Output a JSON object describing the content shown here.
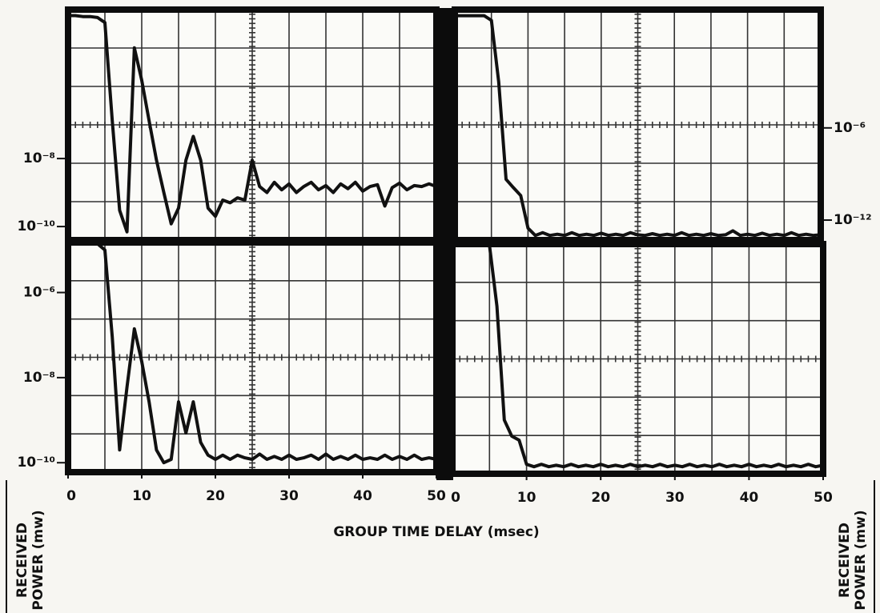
{
  "labels": {
    "x_label": "GROUP TIME DELAY (msec)",
    "y_label_left": [
      "RECEIVED",
      "POWER (mw)"
    ],
    "y_label_right": [
      "RECEIVED",
      "POWER (mw)"
    ]
  },
  "chart_data": [
    {
      "type": "line",
      "log_y": true,
      "grid": true,
      "y_axis_side": "left",
      "xlim": [
        0,
        50
      ],
      "ylim": [
        4e-11,
        0.00024
      ],
      "yticks": [
        {
          "value": 1e-08,
          "label": "10⁻⁸"
        },
        {
          "value": 1e-10,
          "label": "10⁻¹⁰"
        }
      ],
      "x": [
        0,
        1,
        2,
        3,
        4,
        5,
        6,
        7,
        8,
        9,
        10,
        11,
        12,
        13,
        14,
        15,
        16,
        17,
        18,
        19,
        20,
        21,
        22,
        23,
        24,
        25,
        26,
        27,
        28,
        29,
        30,
        31,
        32,
        33,
        34,
        35,
        36,
        37,
        38,
        39,
        40,
        41,
        42,
        43,
        44,
        45,
        46,
        47,
        48,
        49,
        50
      ],
      "series": [
        {
          "name": null,
          "color": "#111111",
          "values": [
            0.00016,
            0.00016,
            0.00015,
            0.00015,
            0.00014,
            0.0001,
            1.3e-07,
            3e-10,
            7e-11,
            1.8e-05,
            2e-06,
            1.3e-07,
            9e-09,
            1e-09,
            1.2e-10,
            3.5e-10,
            9e-09,
            4.5e-08,
            9e-09,
            3.5e-10,
            2e-10,
            6e-10,
            5e-10,
            7e-10,
            6e-10,
            9e-09,
            1.5e-09,
            1e-09,
            2e-09,
            1.2e-09,
            1.8e-09,
            1e-09,
            1.5e-09,
            2e-09,
            1.2e-09,
            1.6e-09,
            1e-09,
            1.8e-09,
            1.3e-09,
            2e-09,
            1.1e-09,
            1.5e-09,
            1.7e-09,
            4e-10,
            1.4e-09,
            1.9e-09,
            1.2e-09,
            1.6e-09,
            1.5e-09,
            1.8e-09,
            1.5e-09
          ]
        }
      ]
    },
    {
      "type": "line",
      "log_y": true,
      "grid": true,
      "y_axis_side": "right",
      "xlim": [
        0,
        50
      ],
      "ylim": [
        5e-14,
        50
      ],
      "yticks": [
        {
          "value": 1e-06,
          "label": "10⁻⁶"
        },
        {
          "value": 1e-12,
          "label": "10⁻¹²"
        }
      ],
      "x": [
        0,
        1,
        2,
        3,
        4,
        5,
        6,
        7,
        8,
        9,
        10,
        11,
        12,
        13,
        14,
        15,
        16,
        17,
        18,
        19,
        20,
        21,
        22,
        23,
        24,
        25,
        26,
        27,
        28,
        29,
        30,
        31,
        32,
        33,
        34,
        35,
        36,
        37,
        38,
        39,
        40,
        41,
        42,
        43,
        44,
        45,
        46,
        47,
        48,
        49,
        50
      ],
      "series": [
        {
          "name": null,
          "color": "#111111",
          "values": [
            20,
            20,
            20,
            20,
            20,
            10,
            0.001,
            4.5e-10,
            1.3e-10,
            4e-11,
            3e-13,
            1e-13,
            1.5e-13,
            1e-13,
            1.2e-13,
            1e-13,
            1.5e-13,
            1e-13,
            1.2e-13,
            1e-13,
            1.4e-13,
            1e-13,
            1.2e-13,
            1e-13,
            1.5e-13,
            1.1e-13,
            1e-13,
            1.3e-13,
            1e-13,
            1.2e-13,
            1e-13,
            1.5e-13,
            1e-13,
            1.2e-13,
            1e-13,
            1.3e-13,
            1e-13,
            1.1e-13,
            2e-13,
            1e-13,
            1.2e-13,
            1e-13,
            1.4e-13,
            1e-13,
            1.2e-13,
            1e-13,
            1.5e-13,
            1e-13,
            1.2e-13,
            1e-13,
            1.1e-13
          ]
        }
      ]
    },
    {
      "type": "line",
      "log_y": true,
      "grid": true,
      "y_axis_side": "left",
      "xlim": [
        0,
        50
      ],
      "ylim": [
        6e-11,
        1.5e-05
      ],
      "xticks": [
        0,
        10,
        20,
        30,
        40,
        50
      ],
      "yticks": [
        {
          "value": 1e-06,
          "label": "10⁻⁶"
        },
        {
          "value": 1e-08,
          "label": "10⁻⁸"
        },
        {
          "value": 1e-10,
          "label": "10⁻¹⁰"
        }
      ],
      "x": [
        0,
        1,
        2,
        3,
        4,
        5,
        6,
        7,
        8,
        9,
        10,
        11,
        12,
        13,
        14,
        15,
        16,
        17,
        18,
        19,
        20,
        21,
        22,
        23,
        24,
        25,
        26,
        27,
        28,
        29,
        30,
        31,
        32,
        33,
        34,
        35,
        36,
        37,
        38,
        39,
        40,
        41,
        42,
        43,
        44,
        45,
        46,
        47,
        48,
        49,
        50
      ],
      "series": [
        {
          "name": null,
          "color": "#111111",
          "values": [
            1.4e-05,
            1.4e-05,
            1.4e-05,
            1.4e-05,
            1.4e-05,
            1e-05,
            9e-08,
            2e-10,
            6e-09,
            1.4e-07,
            2.4e-08,
            2.7e-09,
            2e-10,
            1e-10,
            1.2e-10,
            2.7e-09,
            5e-10,
            2.7e-09,
            3e-10,
            1.5e-10,
            1.2e-10,
            1.5e-10,
            1.2e-10,
            1.5e-10,
            1.3e-10,
            1.2e-10,
            1.6e-10,
            1.2e-10,
            1.4e-10,
            1.2e-10,
            1.5e-10,
            1.2e-10,
            1.3e-10,
            1.5e-10,
            1.2e-10,
            1.6e-10,
            1.2e-10,
            1.4e-10,
            1.2e-10,
            1.5e-10,
            1.2e-10,
            1.3e-10,
            1.2e-10,
            1.5e-10,
            1.2e-10,
            1.4e-10,
            1.2e-10,
            1.5e-10,
            1.2e-10,
            1.3e-10,
            1.2e-10
          ]
        }
      ]
    },
    {
      "type": "line",
      "log_y": true,
      "grid": true,
      "xlim": [
        0,
        50
      ],
      "ylim": [
        6e-11,
        1.5e-05
      ],
      "xticks": [
        0,
        10,
        20,
        30,
        40,
        50
      ],
      "x": [
        0,
        1,
        2,
        3,
        4,
        5,
        6,
        7,
        8,
        9,
        10,
        11,
        12,
        13,
        14,
        15,
        16,
        17,
        18,
        19,
        20,
        21,
        22,
        23,
        24,
        25,
        26,
        27,
        28,
        29,
        30,
        31,
        32,
        33,
        34,
        35,
        36,
        37,
        38,
        39,
        40,
        41,
        42,
        43,
        44,
        45,
        46,
        47,
        48,
        49,
        50
      ],
      "series": [
        {
          "name": null,
          "color": "#111111",
          "values": [
            1.4e-05,
            1.4e-05,
            1.4e-05,
            1.4e-05,
            1.4e-05,
            1.4e-05,
            5.2e-07,
            1.1e-09,
            4.6e-10,
            3.7e-10,
            1e-10,
            8.8e-11,
            1e-10,
            8.8e-11,
            9.5e-11,
            8.8e-11,
            1e-10,
            8.8e-11,
            9.5e-11,
            8.8e-11,
            1e-10,
            8.8e-11,
            9.5e-11,
            8.8e-11,
            1e-10,
            8.8e-11,
            9.5e-11,
            8.8e-11,
            1e-10,
            8.8e-11,
            9.5e-11,
            8.8e-11,
            1e-10,
            8.8e-11,
            9.5e-11,
            8.8e-11,
            1e-10,
            8.8e-11,
            9.5e-11,
            8.8e-11,
            1e-10,
            8.8e-11,
            9.5e-11,
            8.8e-11,
            1e-10,
            8.8e-11,
            9.5e-11,
            8.8e-11,
            1e-10,
            8.8e-11,
            9.5e-11
          ]
        }
      ]
    }
  ]
}
